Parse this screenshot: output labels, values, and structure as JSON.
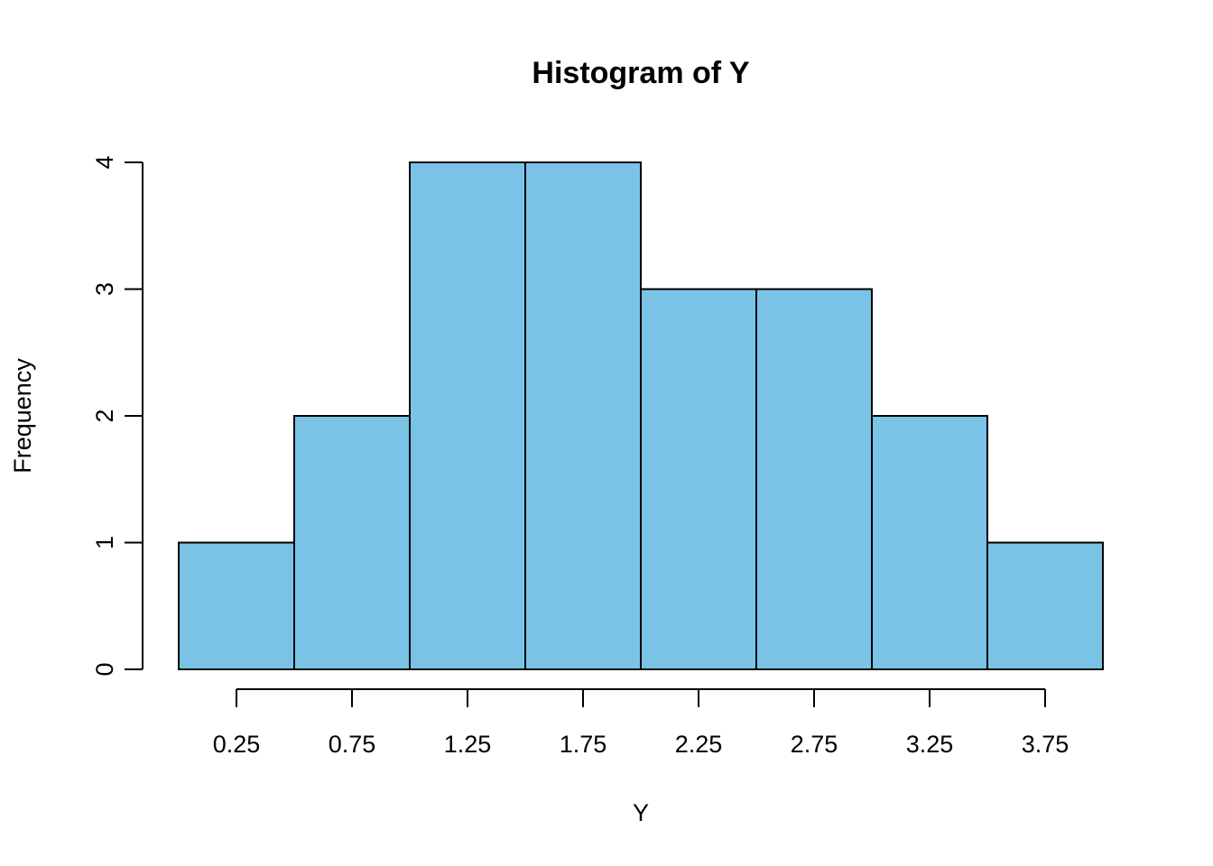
{
  "chart_data": {
    "type": "bar",
    "title": "Histogram of Y",
    "xlabel": "Y",
    "ylabel": "Frequency",
    "bins": [
      {
        "start": 0.0,
        "end": 0.5,
        "count": 1
      },
      {
        "start": 0.5,
        "end": 1.0,
        "count": 2
      },
      {
        "start": 1.0,
        "end": 1.5,
        "count": 4
      },
      {
        "start": 1.5,
        "end": 2.0,
        "count": 4
      },
      {
        "start": 2.0,
        "end": 2.5,
        "count": 3
      },
      {
        "start": 2.5,
        "end": 3.0,
        "count": 3
      },
      {
        "start": 3.0,
        "end": 3.5,
        "count": 2
      },
      {
        "start": 3.5,
        "end": 4.0,
        "count": 1
      }
    ],
    "x_ticks": [
      "0.25",
      "0.75",
      "1.25",
      "1.75",
      "2.25",
      "2.75",
      "3.25",
      "3.75"
    ],
    "y_ticks": [
      "0",
      "1",
      "2",
      "3",
      "4"
    ],
    "xlim": [
      0.0,
      4.0
    ],
    "ylim": [
      0,
      4
    ],
    "bar_color": "#7AC3E6",
    "grid": false
  }
}
